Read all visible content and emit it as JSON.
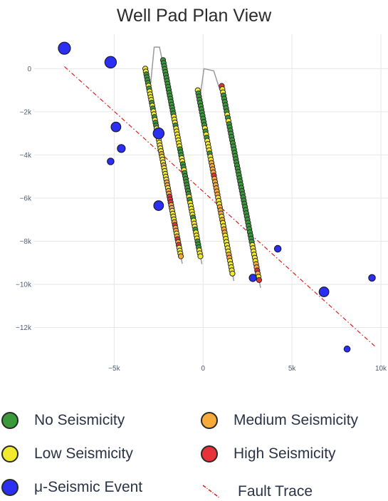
{
  "chart_data": {
    "type": "scatter",
    "title": "Well Pad Plan View",
    "xlabel": "",
    "ylabel": "",
    "xlim": [
      -9500,
      10000
    ],
    "ylim": [
      -14000,
      1600
    ],
    "x_ticks": [
      -5000,
      0,
      5000,
      10000
    ],
    "x_tick_labels": [
      "−5k",
      "0",
      "5k",
      "10k"
    ],
    "y_ticks": [
      0,
      -2000,
      -4000,
      -6000,
      -8000,
      -10000,
      -12000
    ],
    "y_tick_labels": [
      "0",
      "−2k",
      "−4k",
      "−6k",
      "−8k",
      "−10k",
      "−12k"
    ],
    "grid": true,
    "colors": {
      "none": "#3a9a3a",
      "low": "#f2ea2e",
      "medium": "#f7a93a",
      "high": "#e8323a",
      "micro": "#2a2ff2",
      "fault": "#e02020",
      "wellbore": "#9a9a9a"
    },
    "legend": [
      {
        "key": "none",
        "label": "No Seismicity"
      },
      {
        "key": "medium",
        "label": "Medium Seismicity"
      },
      {
        "key": "low",
        "label": "Low Seismicity"
      },
      {
        "key": "high",
        "label": "High Seismicity"
      },
      {
        "key": "micro",
        "label": "μ-Seismic Event"
      },
      {
        "key": "fault",
        "label": "Fault Trace"
      }
    ],
    "fault_trace": {
      "x": [
        -7800,
        9700
      ],
      "y": [
        100,
        -12900
      ]
    },
    "wellbore_heels": [
      {
        "x": [
          -2950,
          -2750,
          -2450,
          -2250
        ],
        "y": [
          -700,
          1000,
          1000,
          200
        ]
      },
      {
        "x": [
          -150,
          50,
          600,
          950
        ],
        "y": [
          -1200,
          0,
          -100,
          -1000
        ]
      }
    ],
    "wells": [
      {
        "start": [
          -3250,
          0
        ],
        "end": [
          -1250,
          -8700
        ],
        "sequence": [
          "low",
          "low",
          "none",
          "none",
          "none",
          "none",
          "low",
          "none",
          "low",
          "low",
          "low",
          "low",
          "none",
          "low",
          "none",
          "low",
          "low",
          "none",
          "low",
          "none",
          "none",
          "low",
          "low",
          "low",
          "low",
          "low",
          "low",
          "low",
          "low",
          "low",
          "medium",
          "low",
          "low",
          "low",
          "medium",
          "low",
          "low",
          "low",
          "low",
          "low",
          "medium",
          "medium",
          "low",
          "medium",
          "medium",
          "high",
          "high",
          "high",
          "medium",
          "medium",
          "low",
          "low",
          "low",
          "low",
          "medium",
          "high",
          "medium",
          "medium",
          "low",
          "medium",
          "high",
          "medium",
          "high",
          "low",
          "low",
          "low",
          "medium"
        ]
      },
      {
        "start": [
          -2250,
          400
        ],
        "end": [
          -150,
          -8700
        ],
        "sequence": [
          "none",
          "none",
          "none",
          "none",
          "none",
          "none",
          "none",
          "none",
          "none",
          "none",
          "none",
          "none",
          "none",
          "none",
          "none",
          "none",
          "none",
          "none",
          "none",
          "low",
          "low",
          "low",
          "none",
          "low",
          "low",
          "low",
          "low",
          "low",
          "low",
          "low",
          "none",
          "none",
          "none",
          "low",
          "low",
          "none",
          "none",
          "low",
          "none",
          "none",
          "none",
          "none",
          "none",
          "none",
          "none",
          "none",
          "low",
          "none",
          "low",
          "low",
          "low",
          "low",
          "low",
          "none",
          "low",
          "low",
          "low",
          "none",
          "low",
          "low",
          "low",
          "none",
          "none",
          "none",
          "low",
          "low",
          "low"
        ]
      },
      {
        "start": [
          -300,
          -1000
        ],
        "end": [
          1650,
          -9500
        ],
        "sequence": [
          "low",
          "none",
          "none",
          "none",
          "none",
          "none",
          "none",
          "none",
          "none",
          "none",
          "none",
          "none",
          "low",
          "none",
          "low",
          "none",
          "low",
          "low",
          "low",
          "low",
          "none",
          "low",
          "low",
          "medium",
          "medium",
          "medium",
          "medium",
          "high",
          "medium",
          "medium",
          "medium",
          "medium",
          "medium",
          "medium",
          "low",
          "low",
          "low",
          "medium",
          "medium",
          "medium",
          "low",
          "medium",
          "low",
          "low",
          "medium",
          "medium",
          "low",
          "low",
          "low",
          "low",
          "low",
          "low",
          "medium",
          "medium",
          "low",
          "low",
          "low",
          "low",
          "low"
        ]
      },
      {
        "start": [
          1050,
          -800
        ],
        "end": [
          3150,
          -9800
        ],
        "sequence": [
          "high",
          "low",
          "low",
          "none",
          "none",
          "none",
          "none",
          "none",
          "none",
          "low",
          "none",
          "low",
          "none",
          "none",
          "none",
          "none",
          "none",
          "none",
          "none",
          "none",
          "none",
          "none",
          "none",
          "none",
          "none",
          "none",
          "none",
          "none",
          "none",
          "none",
          "none",
          "none",
          "none",
          "none",
          "none",
          "none",
          "none",
          "none",
          "none",
          "none",
          "none",
          "none",
          "none",
          "none",
          "none",
          "none",
          "none",
          "none",
          "none",
          "none",
          "low",
          "low",
          "low",
          "low",
          "low",
          "low",
          "medium",
          "medium",
          "high",
          "medium",
          "low",
          "high"
        ]
      }
    ],
    "micro_events": [
      {
        "x": -7800,
        "y": 950,
        "size": 10
      },
      {
        "x": -5200,
        "y": 300,
        "size": 9.5
      },
      {
        "x": -4900,
        "y": -2700,
        "size": 8
      },
      {
        "x": -4600,
        "y": -3700,
        "size": 6.5
      },
      {
        "x": -5200,
        "y": -4300,
        "size": 5.5
      },
      {
        "x": -2500,
        "y": -3000,
        "size": 9
      },
      {
        "x": -2500,
        "y": -6350,
        "size": 8
      },
      {
        "x": 2800,
        "y": -9700,
        "size": 6
      },
      {
        "x": 4200,
        "y": -8350,
        "size": 5.5
      },
      {
        "x": 6800,
        "y": -10350,
        "size": 8
      },
      {
        "x": 9500,
        "y": -9700,
        "size": 5.5
      },
      {
        "x": 8100,
        "y": -13000,
        "size": 5
      }
    ]
  }
}
